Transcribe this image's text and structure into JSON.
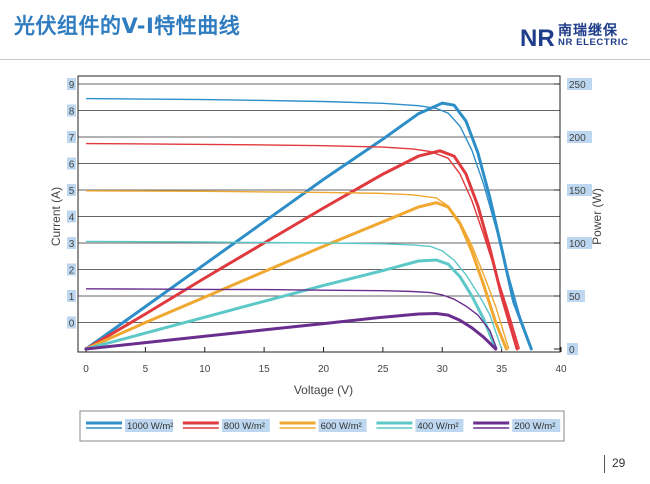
{
  "slide": {
    "title": "光伏组件的V-I特性曲线",
    "page_number": "29"
  },
  "logo": {
    "mark": "NR",
    "name_cn": "南瑞继保",
    "name_en": "NR ELECTRIC",
    "color": "#1f3d8a"
  },
  "chart_data": {
    "type": "line",
    "title": "",
    "xlabel": "Voltage (V)",
    "ylabel": "Current (A)",
    "y2label": "Power (W)",
    "xlim": [
      0,
      40
    ],
    "ylim": [
      -1,
      9
    ],
    "y2lim": [
      0,
      250
    ],
    "x_ticks": [
      0,
      5,
      10,
      15,
      20,
      25,
      30,
      35,
      40
    ],
    "y_ticks": [
      0,
      1,
      2,
      3,
      4,
      5,
      6,
      7,
      8,
      9
    ],
    "y2_ticks": [
      0,
      50,
      100,
      150,
      200,
      250
    ],
    "y_tick_labels": [
      "0",
      "1",
      "2",
      "3",
      "4",
      "5",
      "6",
      "7",
      "8",
      "9"
    ],
    "y2_tick_labels": [
      "0",
      "50",
      "100",
      "150",
      "200",
      "250"
    ],
    "grid": "horizontal",
    "legend_position": "bottom",
    "series": [
      {
        "name": "1000 W/m²",
        "color": "#2e8fc8",
        "current": {
          "x": [
            0,
            5,
            10,
            15,
            20,
            25,
            28,
            29.5,
            30.5,
            31.5,
            32.5,
            33.5,
            34.5,
            35.5,
            36.5,
            37.5
          ],
          "y": [
            8.45,
            8.43,
            8.41,
            8.38,
            8.34,
            8.27,
            8.18,
            8.08,
            7.9,
            7.4,
            6.5,
            5.2,
            3.6,
            1.9,
            0.3,
            -1
          ]
        },
        "power": {
          "x": [
            0,
            5,
            10,
            15,
            20,
            25,
            28,
            30,
            31,
            32,
            33,
            34,
            35,
            36,
            37.5
          ],
          "y": [
            0,
            40,
            80,
            120,
            160,
            198,
            222,
            232,
            230,
            215,
            185,
            143,
            95,
            45,
            0
          ]
        }
      },
      {
        "name": "800 W/m²",
        "color": "#e03a3e",
        "current": {
          "x": [
            0,
            5,
            10,
            15,
            20,
            25,
            27.5,
            29,
            30.5,
            31.5,
            32.5,
            33.5,
            34.5,
            35.5,
            36.5
          ],
          "y": [
            6.75,
            6.74,
            6.72,
            6.7,
            6.67,
            6.62,
            6.55,
            6.45,
            6.2,
            5.6,
            4.6,
            3.3,
            1.9,
            0.5,
            -1
          ]
        },
        "power": {
          "x": [
            0,
            5,
            10,
            15,
            20,
            25,
            28,
            29.8,
            31,
            32,
            33,
            34,
            35,
            36.3
          ],
          "y": [
            0,
            33,
            67,
            100,
            133,
            165,
            182,
            187,
            182,
            165,
            135,
            95,
            50,
            0
          ]
        }
      },
      {
        "name": "600 W/m²",
        "color": "#f0a830",
        "current": {
          "x": [
            0,
            5,
            10,
            15,
            20,
            25,
            27.5,
            29.5,
            30.5,
            31.5,
            32.5,
            33.5,
            34.5,
            35.6
          ],
          "y": [
            4.97,
            4.96,
            4.95,
            4.93,
            4.91,
            4.87,
            4.82,
            4.7,
            4.4,
            3.8,
            2.9,
            1.8,
            0.6,
            -1
          ]
        },
        "power": {
          "x": [
            0,
            5,
            10,
            15,
            20,
            25,
            28,
            29.5,
            30.5,
            31.5,
            32.5,
            33.5,
            34.5,
            35.4
          ],
          "y": [
            0,
            25,
            49,
            73,
            97,
            120,
            134,
            138,
            134,
            118,
            92,
            60,
            25,
            0
          ]
        }
      },
      {
        "name": "400 W/m²",
        "color": "#5cc8c8",
        "current": {
          "x": [
            0,
            5,
            10,
            15,
            20,
            25,
            27.5,
            29,
            30,
            31,
            32,
            33,
            34,
            35
          ],
          "y": [
            3.06,
            3.05,
            3.04,
            3.02,
            3.0,
            2.97,
            2.93,
            2.87,
            2.7,
            2.35,
            1.8,
            1.1,
            0.3,
            -1
          ]
        },
        "power": {
          "x": [
            0,
            5,
            10,
            15,
            20,
            25,
            28,
            29.5,
            30.5,
            31.5,
            32.5,
            33.5,
            34.5
          ],
          "y": [
            0,
            15,
            30,
            45,
            60,
            74,
            83,
            84,
            80,
            68,
            50,
            28,
            0
          ]
        }
      },
      {
        "name": "200 W/m²",
        "color": "#6a2f8e",
        "current": {
          "x": [
            0,
            5,
            10,
            15,
            20,
            25,
            27.5,
            29,
            30,
            31,
            32,
            33,
            34,
            34.6
          ],
          "y": [
            1.27,
            1.26,
            1.25,
            1.24,
            1.22,
            1.2,
            1.17,
            1.13,
            1.04,
            0.88,
            0.62,
            0.28,
            -0.3,
            -1
          ]
        },
        "power": {
          "x": [
            0,
            5,
            10,
            15,
            20,
            25,
            28,
            29.5,
            30.5,
            31.5,
            32.5,
            33.5,
            34.5
          ],
          "y": [
            0,
            6,
            12,
            18,
            24,
            30,
            33,
            33.5,
            32,
            27,
            20,
            11,
            0
          ]
        }
      }
    ]
  }
}
